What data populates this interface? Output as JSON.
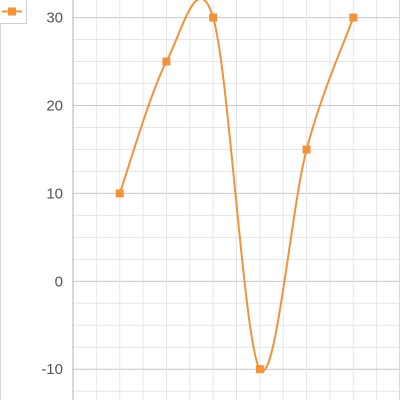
{
  "chart_data": {
    "type": "line",
    "title": "",
    "xlabel": "",
    "ylabel": "",
    "x": [
      1,
      2,
      3,
      4,
      5,
      6
    ],
    "series": [
      {
        "values": [
          10,
          25,
          30,
          -10,
          15,
          30
        ],
        "color": "#f2923a",
        "marker": "square"
      }
    ],
    "ylim": [
      -13.5,
      32
    ],
    "xlim": [
      0,
      7
    ],
    "yticks": [
      30,
      20,
      10,
      0,
      -10
    ],
    "ytick_labels": [
      "30",
      "20",
      "10",
      "0",
      "-10"
    ],
    "minor_gridlines": true,
    "grid": true,
    "smooth": true,
    "legend": {
      "position": "top-left",
      "marker_color": "#f2923a"
    },
    "gridline_color": "#e6e6e6",
    "major_gridline_color": "#c8c8c8",
    "axis_color": "#b0b0b0"
  }
}
